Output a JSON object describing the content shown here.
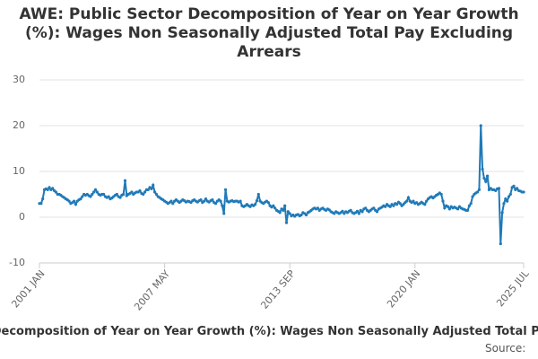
{
  "chart_data": {
    "type": "line",
    "title": "AWE: Public Sector Decomposition of Year on Year Growth (%): Wages Non Seasonally Adjusted Total Pay Excluding Arrears",
    "source": "Source:",
    "categories": [
      "2001 JAN",
      null,
      null,
      null,
      null,
      null,
      null,
      null,
      null,
      null,
      null,
      null,
      null,
      null,
      null,
      null,
      null,
      null,
      null,
      null,
      null,
      null,
      null,
      null,
      null,
      null,
      null,
      null,
      null,
      null,
      null,
      null,
      null,
      null,
      null,
      null,
      null,
      null,
      null,
      null,
      null,
      null,
      null,
      null,
      null,
      null,
      null,
      null,
      null,
      null,
      null,
      null,
      null,
      null,
      null,
      null,
      null,
      null,
      null,
      null,
      null,
      null,
      null,
      null,
      null,
      null,
      null,
      null,
      null,
      null,
      null,
      null,
      null,
      null,
      null,
      null,
      "2007 MAY",
      null,
      null,
      null,
      null,
      null,
      null,
      null,
      null,
      null,
      null,
      null,
      null,
      null,
      null,
      null,
      null,
      null,
      null,
      null,
      null,
      null,
      null,
      null,
      null,
      null,
      null,
      null,
      null,
      null,
      null,
      null,
      null,
      null,
      null,
      null,
      null,
      null,
      null,
      null,
      null,
      null,
      null,
      null,
      null,
      null,
      null,
      null,
      null,
      null,
      null,
      null,
      null,
      null,
      null,
      null,
      null,
      null,
      null,
      null,
      null,
      null,
      null,
      null,
      null,
      null,
      null,
      null,
      null,
      null,
      null,
      null,
      null,
      null,
      null,
      null,
      "2013 SEP",
      null,
      null,
      null,
      null,
      null,
      null,
      null,
      null,
      null,
      null,
      null,
      null,
      null,
      null,
      null,
      null,
      null,
      null,
      null,
      null,
      null,
      null,
      null,
      null,
      null,
      null,
      null,
      null,
      null,
      null,
      null,
      null,
      null,
      null,
      null,
      null,
      null,
      null,
      null,
      null,
      null,
      null,
      null,
      null,
      null,
      null,
      null,
      null,
      null,
      null,
      null,
      null,
      null,
      null,
      null,
      null,
      null,
      null,
      null,
      null,
      null,
      null,
      null,
      null,
      null,
      null,
      null,
      null,
      null,
      null,
      null,
      null,
      null,
      null,
      null,
      "2020 JAN",
      null,
      null,
      null,
      null,
      null,
      null,
      null,
      null,
      null,
      null,
      null,
      null,
      null,
      null,
      null,
      null,
      null,
      null,
      null,
      null,
      null,
      null,
      null,
      null,
      null,
      null,
      null,
      null,
      null,
      null,
      null,
      null,
      null,
      null,
      null,
      null,
      null,
      null,
      null,
      null,
      null,
      null,
      null,
      null,
      null,
      null,
      null,
      null,
      null,
      null,
      null,
      null,
      null,
      null,
      null,
      null,
      null,
      null,
      null,
      null,
      null,
      null,
      null,
      null,
      null,
      "2025 JUL"
    ],
    "series": [
      {
        "color": "#1f7ab8",
        "values": [
          3,
          3,
          4,
          6,
          6.2,
          6,
          6.5,
          6,
          6.3,
          5.8,
          5.5,
          5,
          5,
          4.8,
          4.5,
          4.3,
          4,
          3.8,
          3.5,
          3,
          3.2,
          3.5,
          2.8,
          3.5,
          3.8,
          4,
          4.5,
          5,
          4.8,
          5,
          4.7,
          4.5,
          5,
          5.5,
          6,
          5.5,
          5,
          4.8,
          5,
          5,
          4.5,
          4.3,
          4.5,
          4,
          4.2,
          4.5,
          4.8,
          5,
          4.5,
          4.3,
          4.8,
          5,
          8,
          4.7,
          5,
          5.2,
          5.5,
          5,
          5.3,
          5.5,
          5.5,
          5.8,
          5.2,
          5,
          5.5,
          6,
          6,
          6.5,
          6.2,
          7,
          5.5,
          5,
          4.5,
          4.3,
          4,
          3.8,
          3.5,
          3.3,
          3,
          3.2,
          3.5,
          3,
          3.5,
          3.8,
          3.5,
          3.2,
          3.5,
          3.8,
          3.6,
          3.3,
          3.5,
          3.4,
          3.2,
          3.6,
          3.8,
          3.5,
          3.3,
          3.6,
          3.8,
          3.2,
          3.5,
          4,
          3.5,
          3.3,
          3.6,
          3.8,
          3.2,
          3,
          3.5,
          3.8,
          3.5,
          2.5,
          0.8,
          6,
          3.5,
          3.3,
          3.5,
          3.6,
          3.4,
          3.5,
          3.5,
          3.3,
          3.5,
          2.5,
          2.3,
          2.5,
          2.8,
          2.5,
          2.3,
          2.7,
          2.5,
          2.8,
          3.6,
          5,
          3.5,
          3.2,
          3,
          3.3,
          3.5,
          3.2,
          2.5,
          2.2,
          2.5,
          2,
          1.5,
          1.3,
          1,
          1.8,
          1.5,
          2.5,
          -1.2,
          1.2,
          0.8,
          0.3,
          0.5,
          0.2,
          0.5,
          0.6,
          0.3,
          0.5,
          1,
          0.8,
          0.5,
          1,
          1.2,
          1.5,
          1.8,
          2,
          1.8,
          2,
          1.5,
          1.8,
          2,
          1.7,
          1.5,
          1.8,
          1.6,
          1.2,
          1,
          0.8,
          1.2,
          1,
          0.8,
          1,
          1.3,
          0.8,
          1.2,
          1,
          1.3,
          1.5,
          1,
          0.8,
          1,
          1.3,
          0.8,
          1.5,
          1.2,
          1.8,
          2,
          1.5,
          1.2,
          1.5,
          1.8,
          2,
          1.5,
          1.2,
          1.8,
          2,
          2.2,
          2.5,
          2.3,
          2.8,
          2.5,
          2.3,
          2.8,
          2.5,
          3,
          2.8,
          3.3,
          3,
          2.5,
          2.8,
          3.2,
          3.5,
          4.3,
          3.5,
          3.2,
          3.5,
          3,
          3.2,
          2.8,
          3,
          3.3,
          3,
          2.8,
          3.5,
          4,
          4.3,
          4.5,
          4.2,
          4.5,
          4.8,
          5,
          5.3,
          5,
          3.5,
          2,
          2.5,
          2.3,
          1.8,
          2.3,
          2,
          2.2,
          2,
          1.8,
          2.3,
          2,
          1.8,
          1.7,
          1.5,
          1.5,
          2.5,
          3,
          4.5,
          5,
          5.3,
          5.5,
          6,
          20,
          10.5,
          8.5,
          7.8,
          9,
          6,
          6.3,
          6,
          6,
          5.8,
          6.2,
          6.3,
          -5.8,
          1,
          3,
          4,
          3.5,
          4.5,
          5,
          6.5,
          6.8,
          6,
          6.3,
          5.8,
          5.7,
          5.5,
          5.5
        ]
      }
    ],
    "ylim": [
      -10,
      30
    ],
    "yticks": [
      -10,
      0,
      10,
      20,
      30
    ],
    "grid": true
  }
}
